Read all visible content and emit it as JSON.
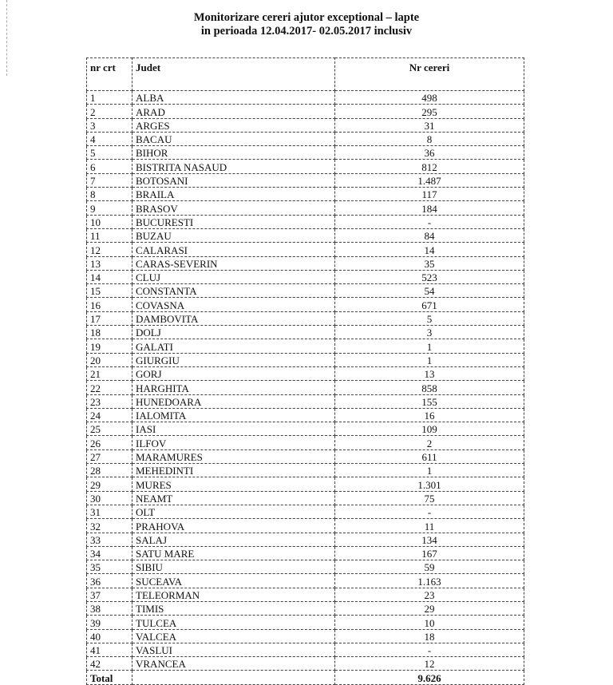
{
  "title_line1": "Monitorizare cereri  ajutor exceptional – lapte",
  "title_line2": "in perioada  12.04.2017- 02.05.2017  inclusiv",
  "headers": [
    "nr crt",
    "Judet",
    "Nr cereri"
  ],
  "rows": [
    [
      "1",
      "ALBA",
      "498"
    ],
    [
      "2",
      "ARAD",
      "295"
    ],
    [
      "3",
      "ARGES",
      "31"
    ],
    [
      "4",
      "BACAU",
      "8"
    ],
    [
      "5",
      "BIHOR",
      "36"
    ],
    [
      "6",
      "BISTRITA NASAUD",
      "812"
    ],
    [
      "7",
      "BOTOSANI",
      "1.487"
    ],
    [
      "8",
      "BRAILA",
      "117"
    ],
    [
      "9",
      "BRASOV",
      "184"
    ],
    [
      "10",
      "BUCURESTI",
      "-"
    ],
    [
      "11",
      "BUZAU",
      "84"
    ],
    [
      "12",
      "CALARASI",
      "14"
    ],
    [
      "13",
      "CARAS-SEVERIN",
      "35"
    ],
    [
      "14",
      "CLUJ",
      "523"
    ],
    [
      "15",
      "CONSTANTA",
      "54"
    ],
    [
      "16",
      "COVASNA",
      "671"
    ],
    [
      "17",
      "DAMBOVITA",
      "5"
    ],
    [
      "18",
      "DOLJ",
      "3"
    ],
    [
      "19",
      "GALATI",
      "1"
    ],
    [
      "20",
      "GIURGIU",
      "1"
    ],
    [
      "21",
      "GORJ",
      "13"
    ],
    [
      "22",
      "HARGHITA",
      "858"
    ],
    [
      "23",
      "HUNEDOARA",
      "155"
    ],
    [
      "24",
      "IALOMITA",
      "16"
    ],
    [
      "25",
      "IASI",
      "109"
    ],
    [
      "26",
      "ILFOV",
      "2"
    ],
    [
      "27",
      "MARAMURES",
      "611"
    ],
    [
      "28",
      "MEHEDINTI",
      "1"
    ],
    [
      "29",
      "MURES",
      "1.301"
    ],
    [
      "30",
      "NEAMT",
      "75"
    ],
    [
      "31",
      "OLT",
      "-"
    ],
    [
      "32",
      "PRAHOVA",
      "11"
    ],
    [
      "33",
      "SALAJ",
      "134"
    ],
    [
      "34",
      "SATU MARE",
      "167"
    ],
    [
      "35",
      "SIBIU",
      "59"
    ],
    [
      "36",
      "SUCEAVA",
      "1.163"
    ],
    [
      "37",
      "TELEORMAN",
      "23"
    ],
    [
      "38",
      "TIMIS",
      "29"
    ],
    [
      "39",
      "TULCEA",
      "10"
    ],
    [
      "40",
      "VALCEA",
      "18"
    ],
    [
      "41",
      "VASLUI",
      "-"
    ],
    [
      "42",
      "VRANCEA",
      "12"
    ]
  ],
  "total": {
    "label": "Total",
    "value": "9.626"
  }
}
